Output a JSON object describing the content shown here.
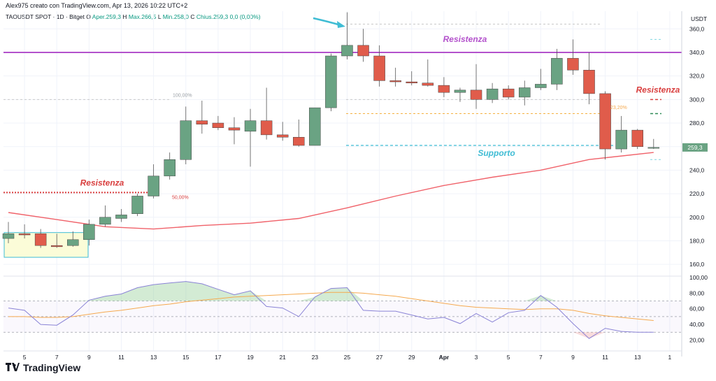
{
  "header": {
    "text": "Alex975 creato con TradingView.com, Apr 13, 2026 10:22 UTC+2"
  },
  "legend": {
    "symbol": "TAOUSDT SPOT · 1D · Bitget",
    "o_label": "O",
    "o": "Aper.259,3",
    "h_label": "H",
    "h": "Max.266,5",
    "l_label": "L",
    "l": "Min.258,0",
    "c_label": "C",
    "c": "Chius.259,3",
    "change": "0,0 (0,00%)"
  },
  "footer": {
    "brand": "TradingView"
  },
  "colors": {
    "up": "#6aa383",
    "down": "#e05c4b",
    "resistance_main": "#b352cc",
    "resistance_red": "#d93f3f",
    "support": "#3fbcd4",
    "ma": "#f0626a",
    "rsi": "#8a83d6",
    "rsi_ma": "#f5a94e",
    "grid": "#f0f3fa"
  },
  "chart_data": [
    {
      "type": "candlestick",
      "currency": "USDT",
      "price_tag": "259,3",
      "ylim": [
        150,
        375
      ],
      "y_ticks": [
        {
          "v": 160,
          "label": "160,0"
        },
        {
          "v": 180,
          "label": "180,0"
        },
        {
          "v": 200,
          "label": "200,0"
        },
        {
          "v": 220,
          "label": "220,0"
        },
        {
          "v": 240,
          "label": "240,0"
        },
        {
          "v": 260,
          "label": "260,0"
        },
        {
          "v": 280,
          "label": "280,0"
        },
        {
          "v": 300,
          "label": "300,0"
        },
        {
          "v": 320,
          "label": "320,0"
        },
        {
          "v": 340,
          "label": "340,0"
        },
        {
          "v": 360,
          "label": "360,0"
        }
      ],
      "x_ticks": [
        "5",
        "7",
        "9",
        "11",
        "13",
        "15",
        "17",
        "19",
        "21",
        "23",
        "25",
        "27",
        "29",
        "Apr",
        "3",
        "5",
        "7",
        "9",
        "11",
        "13",
        "1"
      ],
      "candles": [
        {
          "date": "Mar 4",
          "o": 182,
          "h": 196,
          "l": 178,
          "c": 186
        },
        {
          "date": "Mar 5",
          "o": 186,
          "h": 194,
          "l": 182,
          "c": 185
        },
        {
          "date": "Mar 6",
          "o": 186,
          "h": 190,
          "l": 174,
          "c": 176
        },
        {
          "date": "Mar 7",
          "o": 176,
          "h": 186,
          "l": 174,
          "c": 175
        },
        {
          "date": "Mar 8",
          "o": 176,
          "h": 188,
          "l": 175,
          "c": 181
        },
        {
          "date": "Mar 9",
          "o": 181,
          "h": 198,
          "l": 176,
          "c": 194
        },
        {
          "date": "Mar 10",
          "o": 194,
          "h": 210,
          "l": 192,
          "c": 200
        },
        {
          "date": "Mar 11",
          "o": 199,
          "h": 207,
          "l": 196,
          "c": 202
        },
        {
          "date": "Mar 12",
          "o": 203,
          "h": 220,
          "l": 201,
          "c": 218
        },
        {
          "date": "Mar 13",
          "o": 218,
          "h": 245,
          "l": 216,
          "c": 235
        },
        {
          "date": "Mar 14",
          "o": 235,
          "h": 255,
          "l": 232,
          "c": 249
        },
        {
          "date": "Mar 15",
          "o": 249,
          "h": 294,
          "l": 245,
          "c": 282
        },
        {
          "date": "Mar 16",
          "o": 282,
          "h": 299,
          "l": 271,
          "c": 279
        },
        {
          "date": "Mar 17",
          "o": 280,
          "h": 286,
          "l": 274,
          "c": 276
        },
        {
          "date": "Mar 18",
          "o": 276,
          "h": 285,
          "l": 262,
          "c": 274
        },
        {
          "date": "Mar 19",
          "o": 273,
          "h": 292,
          "l": 243,
          "c": 282
        },
        {
          "date": "Mar 20",
          "o": 282,
          "h": 310,
          "l": 266,
          "c": 270
        },
        {
          "date": "Mar 21",
          "o": 270,
          "h": 281,
          "l": 265,
          "c": 268
        },
        {
          "date": "Mar 22",
          "o": 268,
          "h": 283,
          "l": 260,
          "c": 261
        },
        {
          "date": "Mar 23",
          "o": 261,
          "h": 293,
          "l": 261,
          "c": 293
        },
        {
          "date": "Mar 24",
          "o": 293,
          "h": 339,
          "l": 290,
          "c": 337
        },
        {
          "date": "Mar 25",
          "o": 337,
          "h": 374,
          "l": 334,
          "c": 346
        },
        {
          "date": "Mar 26",
          "o": 346,
          "h": 360,
          "l": 332,
          "c": 337
        },
        {
          "date": "Mar 27",
          "o": 337,
          "h": 346,
          "l": 311,
          "c": 316
        },
        {
          "date": "Mar 28",
          "o": 316,
          "h": 327,
          "l": 311,
          "c": 315
        },
        {
          "date": "Mar 29",
          "o": 315,
          "h": 324,
          "l": 312,
          "c": 314
        },
        {
          "date": "Mar 30",
          "o": 314,
          "h": 334,
          "l": 311,
          "c": 312
        },
        {
          "date": "Mar 31",
          "o": 312,
          "h": 319,
          "l": 302,
          "c": 306
        },
        {
          "date": "Apr 1",
          "o": 306,
          "h": 310,
          "l": 298,
          "c": 308
        },
        {
          "date": "Apr 2",
          "o": 308,
          "h": 330,
          "l": 292,
          "c": 300
        },
        {
          "date": "Apr 3",
          "o": 300,
          "h": 314,
          "l": 297,
          "c": 309
        },
        {
          "date": "Apr 4",
          "o": 309,
          "h": 312,
          "l": 300,
          "c": 302
        },
        {
          "date": "Apr 5",
          "o": 302,
          "h": 316,
          "l": 295,
          "c": 310
        },
        {
          "date": "Apr 6",
          "o": 310,
          "h": 326,
          "l": 308,
          "c": 313
        },
        {
          "date": "Apr 7",
          "o": 313,
          "h": 343,
          "l": 308,
          "c": 335
        },
        {
          "date": "Apr 8",
          "o": 335,
          "h": 351,
          "l": 321,
          "c": 325
        },
        {
          "date": "Apr 9",
          "o": 325,
          "h": 340,
          "l": 296,
          "c": 305
        },
        {
          "date": "Apr 10",
          "o": 305,
          "h": 307,
          "l": 249,
          "c": 258
        },
        {
          "date": "Apr 11",
          "o": 258,
          "h": 286,
          "l": 255,
          "c": 274
        },
        {
          "date": "Apr 12",
          "o": 274,
          "h": 275,
          "l": 258,
          "c": 260
        },
        {
          "date": "Apr 13",
          "o": 259.3,
          "h": 266.5,
          "l": 258.0,
          "c": 259.3
        }
      ],
      "moving_average": [
        {
          "date": "Mar 4",
          "v": 204
        },
        {
          "date": "Mar 7",
          "v": 198
        },
        {
          "date": "Mar 10",
          "v": 192
        },
        {
          "date": "Mar 13",
          "v": 190
        },
        {
          "date": "Mar 16",
          "v": 193
        },
        {
          "date": "Mar 19",
          "v": 195
        },
        {
          "date": "Mar 22",
          "v": 199
        },
        {
          "date": "Mar 25",
          "v": 208
        },
        {
          "date": "Mar 28",
          "v": 218
        },
        {
          "date": "Mar 31",
          "v": 227
        },
        {
          "date": "Apr 3",
          "v": 234
        },
        {
          "date": "Apr 6",
          "v": 240
        },
        {
          "date": "Apr 9",
          "v": 249
        },
        {
          "date": "Apr 13",
          "v": 255
        }
      ],
      "levels": [
        {
          "name": "Resistenza",
          "value": 340,
          "style": "main"
        },
        {
          "name": "Resistenza",
          "value": 300,
          "style": "red-dashed"
        },
        {
          "name": "Supporto",
          "value": 261,
          "style": "support"
        },
        {
          "name": "Resistenza",
          "value": 221,
          "style": "red-dotted"
        }
      ],
      "fib_labels": [
        "100,00%",
        "50,00%",
        "23,20%"
      ],
      "annotations": [
        "Resistenza",
        "Resistenza",
        "Supporto",
        "Resistenza"
      ]
    },
    {
      "type": "line",
      "ylim": [
        15,
        100
      ],
      "y_ticks": [
        {
          "v": 20,
          "label": "20,00"
        },
        {
          "v": 40,
          "label": "40,00"
        },
        {
          "v": 60,
          "label": "60,00"
        },
        {
          "v": 80,
          "label": "80,00"
        },
        {
          "v": 100,
          "label": "100,00"
        }
      ],
      "bands": [
        30,
        50,
        70
      ],
      "series": [
        {
          "values": [
            61,
            58,
            40,
            39,
            52,
            71,
            76,
            79,
            87,
            91,
            93,
            95,
            92,
            85,
            78,
            83,
            63,
            61,
            50,
            75,
            86,
            87,
            58,
            57,
            57,
            52,
            47,
            49,
            41,
            54,
            43,
            55,
            58,
            77,
            62,
            41,
            22,
            35,
            31,
            30,
            30
          ]
        },
        {
          "values": [
            50,
            50,
            49,
            49,
            50,
            53,
            56,
            58,
            61,
            64,
            66,
            69,
            71,
            73,
            75,
            76,
            77,
            78,
            79,
            80,
            81,
            81,
            80,
            78,
            76,
            73,
            70,
            67,
            64,
            62,
            61,
            60,
            59,
            60,
            60,
            58,
            54,
            51,
            49,
            47,
            45
          ]
        }
      ]
    }
  ]
}
